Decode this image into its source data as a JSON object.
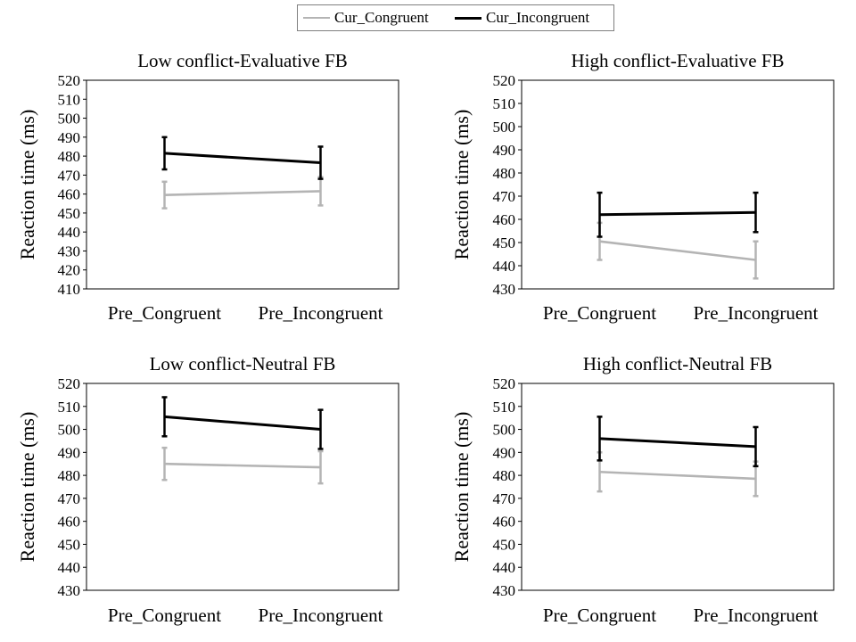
{
  "legend": {
    "items": [
      {
        "name": "Cur_Congruent",
        "color": "#b4b4b4"
      },
      {
        "name": "Cur_Incongruent",
        "color": "#000000"
      }
    ]
  },
  "chart_data": [
    {
      "type": "line",
      "title": "Low conflict-Evaluative FB",
      "ylabel": "Reaction time (ms)",
      "xlabel": "",
      "categories": [
        "Pre_Congruent",
        "Pre_Incongruent"
      ],
      "ylim": [
        410,
        520
      ],
      "yticks": [
        410,
        420,
        430,
        440,
        450,
        460,
        470,
        480,
        490,
        500,
        510,
        520
      ],
      "grid": false,
      "series": [
        {
          "name": "Cur_Congruent",
          "color": "#b4b4b4",
          "values": [
            459.5,
            461.5
          ],
          "error": [
            7,
            7.5
          ]
        },
        {
          "name": "Cur_Incongruent",
          "color": "#000000",
          "values": [
            481.5,
            476.5
          ],
          "error": [
            8.5,
            8.5
          ]
        }
      ]
    },
    {
      "type": "line",
      "title": "High conflict-Evaluative FB",
      "ylabel": "Reaction time (ms)",
      "xlabel": "",
      "categories": [
        "Pre_Congruent",
        "Pre_Incongruent"
      ],
      "ylim": [
        430,
        520
      ],
      "yticks": [
        430,
        440,
        450,
        460,
        470,
        480,
        490,
        500,
        510,
        520
      ],
      "grid": false,
      "series": [
        {
          "name": "Cur_Congruent",
          "color": "#b4b4b4",
          "values": [
            450.5,
            442.5
          ],
          "error": [
            8,
            8
          ]
        },
        {
          "name": "Cur_Incongruent",
          "color": "#000000",
          "values": [
            462,
            463
          ],
          "error": [
            9.5,
            8.5
          ]
        }
      ]
    },
    {
      "type": "line",
      "title": "Low conflict-Neutral FB",
      "ylabel": "Reaction time (ms)",
      "xlabel": "",
      "categories": [
        "Pre_Congruent",
        "Pre_Incongruent"
      ],
      "ylim": [
        430,
        520
      ],
      "yticks": [
        430,
        440,
        450,
        460,
        470,
        480,
        490,
        500,
        510,
        520
      ],
      "grid": false,
      "series": [
        {
          "name": "Cur_Congruent",
          "color": "#b4b4b4",
          "values": [
            485,
            483.5
          ],
          "error": [
            7,
            7
          ]
        },
        {
          "name": "Cur_Incongruent",
          "color": "#000000",
          "values": [
            505.5,
            500
          ],
          "error": [
            8.5,
            8.5
          ]
        }
      ]
    },
    {
      "type": "line",
      "title": "High conflict-Neutral FB",
      "ylabel": "Reaction time (ms)",
      "xlabel": "",
      "categories": [
        "Pre_Congruent",
        "Pre_Incongruent"
      ],
      "ylim": [
        430,
        520
      ],
      "yticks": [
        430,
        440,
        450,
        460,
        470,
        480,
        490,
        500,
        510,
        520
      ],
      "grid": false,
      "series": [
        {
          "name": "Cur_Congruent",
          "color": "#b4b4b4",
          "values": [
            481.5,
            478.5
          ],
          "error": [
            8.5,
            7.5
          ]
        },
        {
          "name": "Cur_Incongruent",
          "color": "#000000",
          "values": [
            496,
            492.5
          ],
          "error": [
            9.5,
            8.5
          ]
        }
      ]
    }
  ]
}
